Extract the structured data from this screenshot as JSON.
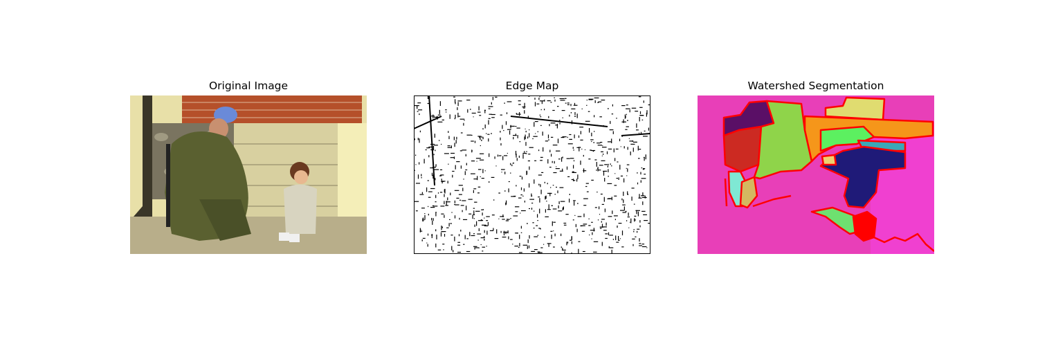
{
  "panels": [
    {
      "title": "Original Image"
    },
    {
      "title": "Edge Map"
    },
    {
      "title": "Watershed Segmentation"
    }
  ],
  "colors": {
    "boundary": "#ff0000",
    "seg_background": "#e83fb8",
    "seg_regions": [
      "#5a0f66",
      "#cc2a22",
      "#8fd44a",
      "#7fe8d4",
      "#d4b860",
      "#f5961a",
      "#e0dc70",
      "#5cf060",
      "#3aa8b8",
      "#1f1a78",
      "#f0d070",
      "#ff0000",
      "#6ee070"
    ]
  }
}
